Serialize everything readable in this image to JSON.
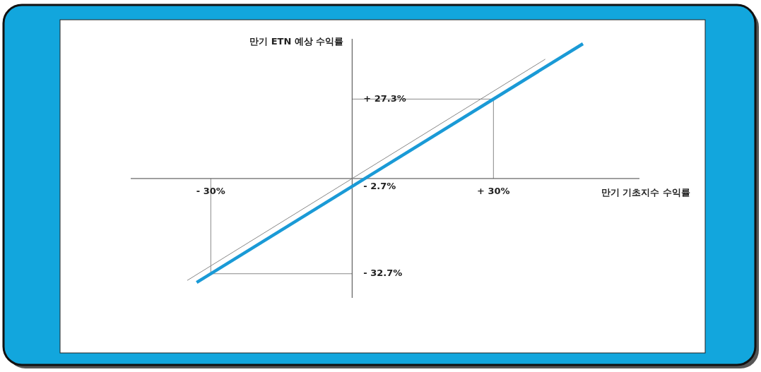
{
  "chart_data": {
    "type": "line",
    "xlabel": "만기 기초지수 수익률",
    "ylabel": "만기 ETN 예상 수익률",
    "xlim": [
      -47,
      61
    ],
    "ylim": [
      -41,
      48
    ],
    "xticks": [
      {
        "value": -30,
        "label": "- 30%"
      },
      {
        "value": 30,
        "label": "+ 30%"
      }
    ],
    "yticks": [
      {
        "value": 27.3,
        "label": "+ 27.3%"
      },
      {
        "value": -2.7,
        "label": "- 2.7%"
      },
      {
        "value": -32.7,
        "label": "- 32.7%"
      }
    ],
    "series": [
      {
        "color": "#888888",
        "x": [
          -35,
          41
        ],
        "values": [
          -35,
          41
        ]
      },
      {
        "color": "#1a9ad6",
        "x": [
          -33,
          49
        ],
        "values": [
          -35.7,
          46.3
        ]
      }
    ],
    "ref_lines": [
      {
        "axis": "x",
        "value": 30,
        "color": "#888888"
      },
      {
        "axis": "y",
        "value": 27.3,
        "color": "#888888"
      },
      {
        "axis": "x",
        "value": -30,
        "color": "#888888"
      },
      {
        "axis": "y",
        "value": -32.7,
        "color": "#888888"
      }
    ],
    "grid": false
  }
}
